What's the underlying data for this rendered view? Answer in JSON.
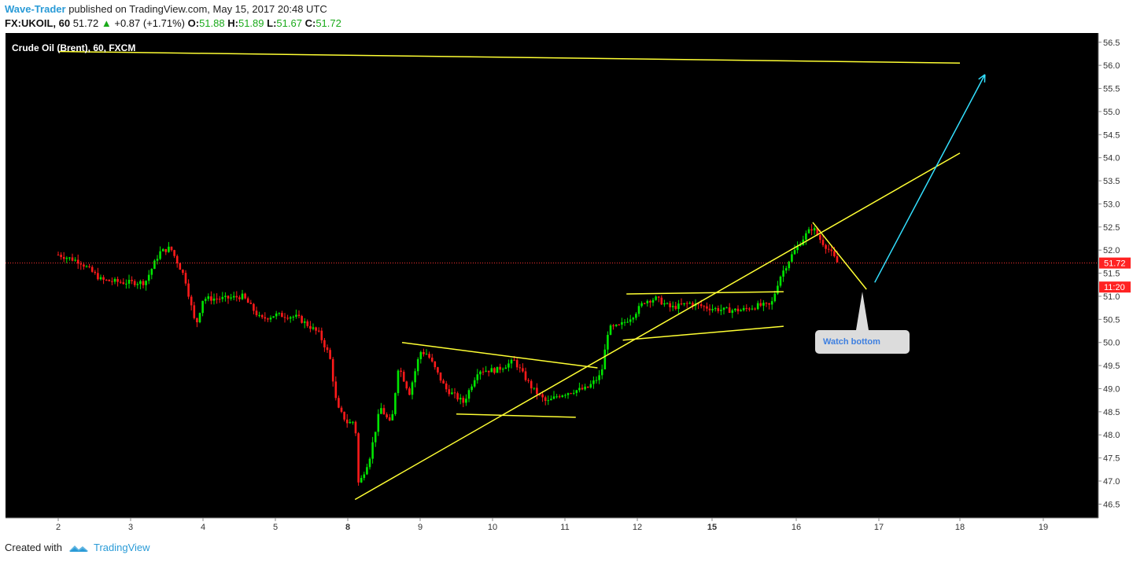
{
  "header": {
    "author": "Wave-Trader",
    "published_text": "published on TradingView.com, May 15, 2017 20:48 UTC"
  },
  "symbol_bar": {
    "symbol": "FX:UKOIL, 60",
    "last": "51.72",
    "change": "+0.87 (+1.71%)",
    "open_label": "O:",
    "open": "51.88",
    "high_label": "H:",
    "high": "51.89",
    "low_label": "L:",
    "low": "51.67",
    "close_label": "C:",
    "close": "51.72"
  },
  "footer": {
    "created_with": "Created with",
    "brand": "TradingView"
  },
  "colors": {
    "up": "#00e600",
    "down": "#ff1a1a",
    "trendline": "#ffff33",
    "target_arrow": "#33e0ff",
    "background": "#000000"
  },
  "chart_data": {
    "type": "candlestick",
    "title": "Crude Oil (Brent), 60, FXCM",
    "x_ticks": [
      {
        "label": "2",
        "day": 2,
        "bold": false
      },
      {
        "label": "3",
        "day": 3,
        "bold": false
      },
      {
        "label": "4",
        "day": 4,
        "bold": false
      },
      {
        "label": "5",
        "day": 5,
        "bold": false
      },
      {
        "label": "8",
        "day": 8,
        "bold": true
      },
      {
        "label": "9",
        "day": 9,
        "bold": false
      },
      {
        "label": "10",
        "day": 10,
        "bold": false
      },
      {
        "label": "11",
        "day": 11,
        "bold": false
      },
      {
        "label": "12",
        "day": 12,
        "bold": false
      },
      {
        "label": "15",
        "day": 15,
        "bold": true
      },
      {
        "label": "16",
        "day": 16,
        "bold": false
      },
      {
        "label": "17",
        "day": 17,
        "bold": false
      },
      {
        "label": "18",
        "day": 18,
        "bold": false
      },
      {
        "label": "19",
        "day": 19,
        "bold": false
      }
    ],
    "y_ticks": [
      "56.5",
      "56.0",
      "55.5",
      "55.0",
      "54.5",
      "54.0",
      "53.5",
      "53.0",
      "52.5",
      "52.0",
      "51.5",
      "51.0",
      "50.5",
      "50.0",
      "49.5",
      "49.0",
      "48.5",
      "48.0",
      "47.5",
      "47.0",
      "46.5"
    ],
    "ylim": [
      46.2,
      56.7
    ],
    "last_price": {
      "value": 51.72,
      "label": "51.72"
    },
    "marker_label": {
      "value": 51.2,
      "label": "11:20"
    },
    "price_points": [
      {
        "x": 1.0,
        "y": 51.9
      },
      {
        "x": 1.3,
        "y": 51.75
      },
      {
        "x": 1.6,
        "y": 51.35
      },
      {
        "x": 1.9,
        "y": 51.3
      },
      {
        "x": 2.2,
        "y": 51.3
      },
      {
        "x": 2.4,
        "y": 51.95
      },
      {
        "x": 2.55,
        "y": 52.05
      },
      {
        "x": 2.75,
        "y": 51.4
      },
      {
        "x": 2.9,
        "y": 50.35
      },
      {
        "x": 3.0,
        "y": 50.95
      },
      {
        "x": 3.3,
        "y": 50.95
      },
      {
        "x": 3.55,
        "y": 51.0
      },
      {
        "x": 3.8,
        "y": 50.5
      },
      {
        "x": 4.0,
        "y": 50.6
      },
      {
        "x": 4.3,
        "y": 50.55
      },
      {
        "x": 4.6,
        "y": 50.2
      },
      {
        "x": 4.75,
        "y": 49.7
      },
      {
        "x": 4.85,
        "y": 48.6
      },
      {
        "x": 5.0,
        "y": 48.25
      },
      {
        "x": 5.1,
        "y": 48.3
      },
      {
        "x": 5.15,
        "y": 46.9
      },
      {
        "x": 5.3,
        "y": 47.5
      },
      {
        "x": 5.45,
        "y": 48.6
      },
      {
        "x": 5.6,
        "y": 48.2
      },
      {
        "x": 5.7,
        "y": 49.5
      },
      {
        "x": 5.85,
        "y": 48.9
      },
      {
        "x": 6.0,
        "y": 49.8
      },
      {
        "x": 6.1,
        "y": 49.75
      },
      {
        "x": 6.35,
        "y": 49.0
      },
      {
        "x": 6.6,
        "y": 48.7
      },
      {
        "x": 6.8,
        "y": 49.4
      },
      {
        "x": 7.05,
        "y": 49.4
      },
      {
        "x": 7.3,
        "y": 49.6
      },
      {
        "x": 7.55,
        "y": 49.0
      },
      {
        "x": 7.75,
        "y": 48.7
      },
      {
        "x": 7.9,
        "y": 48.85
      },
      {
        "x": 8.1,
        "y": 48.95
      },
      {
        "x": 8.3,
        "y": 49.0
      },
      {
        "x": 8.5,
        "y": 49.3
      },
      {
        "x": 8.6,
        "y": 50.3
      },
      {
        "x": 8.75,
        "y": 50.35
      },
      {
        "x": 8.95,
        "y": 50.6
      },
      {
        "x": 9.1,
        "y": 50.9
      },
      {
        "x": 9.25,
        "y": 50.95
      },
      {
        "x": 9.45,
        "y": 50.75
      },
      {
        "x": 9.7,
        "y": 50.85
      },
      {
        "x": 9.95,
        "y": 50.75
      },
      {
        "x": 10.15,
        "y": 50.7
      },
      {
        "x": 10.35,
        "y": 50.7
      },
      {
        "x": 10.55,
        "y": 50.8
      },
      {
        "x": 10.7,
        "y": 50.8
      },
      {
        "x": 10.8,
        "y": 51.4
      },
      {
        "x": 10.95,
        "y": 51.9
      },
      {
        "x": 11.1,
        "y": 52.3
      },
      {
        "x": 11.2,
        "y": 52.5
      },
      {
        "x": 11.3,
        "y": 52.2
      },
      {
        "x": 11.4,
        "y": 52.0
      },
      {
        "x": 11.5,
        "y": 51.72
      }
    ],
    "annotations": [
      {
        "type": "line",
        "points": [
          [
            1.0,
            56.3
          ],
          [
            14.0,
            56.05
          ]
        ],
        "color": "yellow"
      },
      {
        "type": "line",
        "points": [
          [
            5.1,
            46.6
          ],
          [
            14.0,
            54.1
          ]
        ],
        "color": "yellow"
      },
      {
        "type": "line",
        "points": [
          [
            5.75,
            50.0
          ],
          [
            8.45,
            49.45
          ]
        ],
        "color": "yellow"
      },
      {
        "type": "line",
        "points": [
          [
            6.5,
            48.45
          ],
          [
            8.15,
            48.38
          ]
        ],
        "color": "yellow"
      },
      {
        "type": "line",
        "points": [
          [
            8.85,
            51.05
          ],
          [
            10.85,
            51.1
          ]
        ],
        "color": "yellow"
      },
      {
        "type": "line",
        "points": [
          [
            8.8,
            50.05
          ],
          [
            10.85,
            50.35
          ]
        ],
        "color": "yellow"
      },
      {
        "type": "line",
        "points": [
          [
            11.2,
            52.6
          ],
          [
            11.85,
            51.15
          ]
        ],
        "color": "yellow"
      },
      {
        "type": "arrow",
        "points": [
          [
            11.95,
            51.3
          ],
          [
            13.3,
            55.8
          ]
        ],
        "color": "cyan"
      },
      {
        "type": "callout",
        "text": "Watch bottom",
        "pointer": [
          11.8,
          51.1
        ]
      }
    ]
  }
}
